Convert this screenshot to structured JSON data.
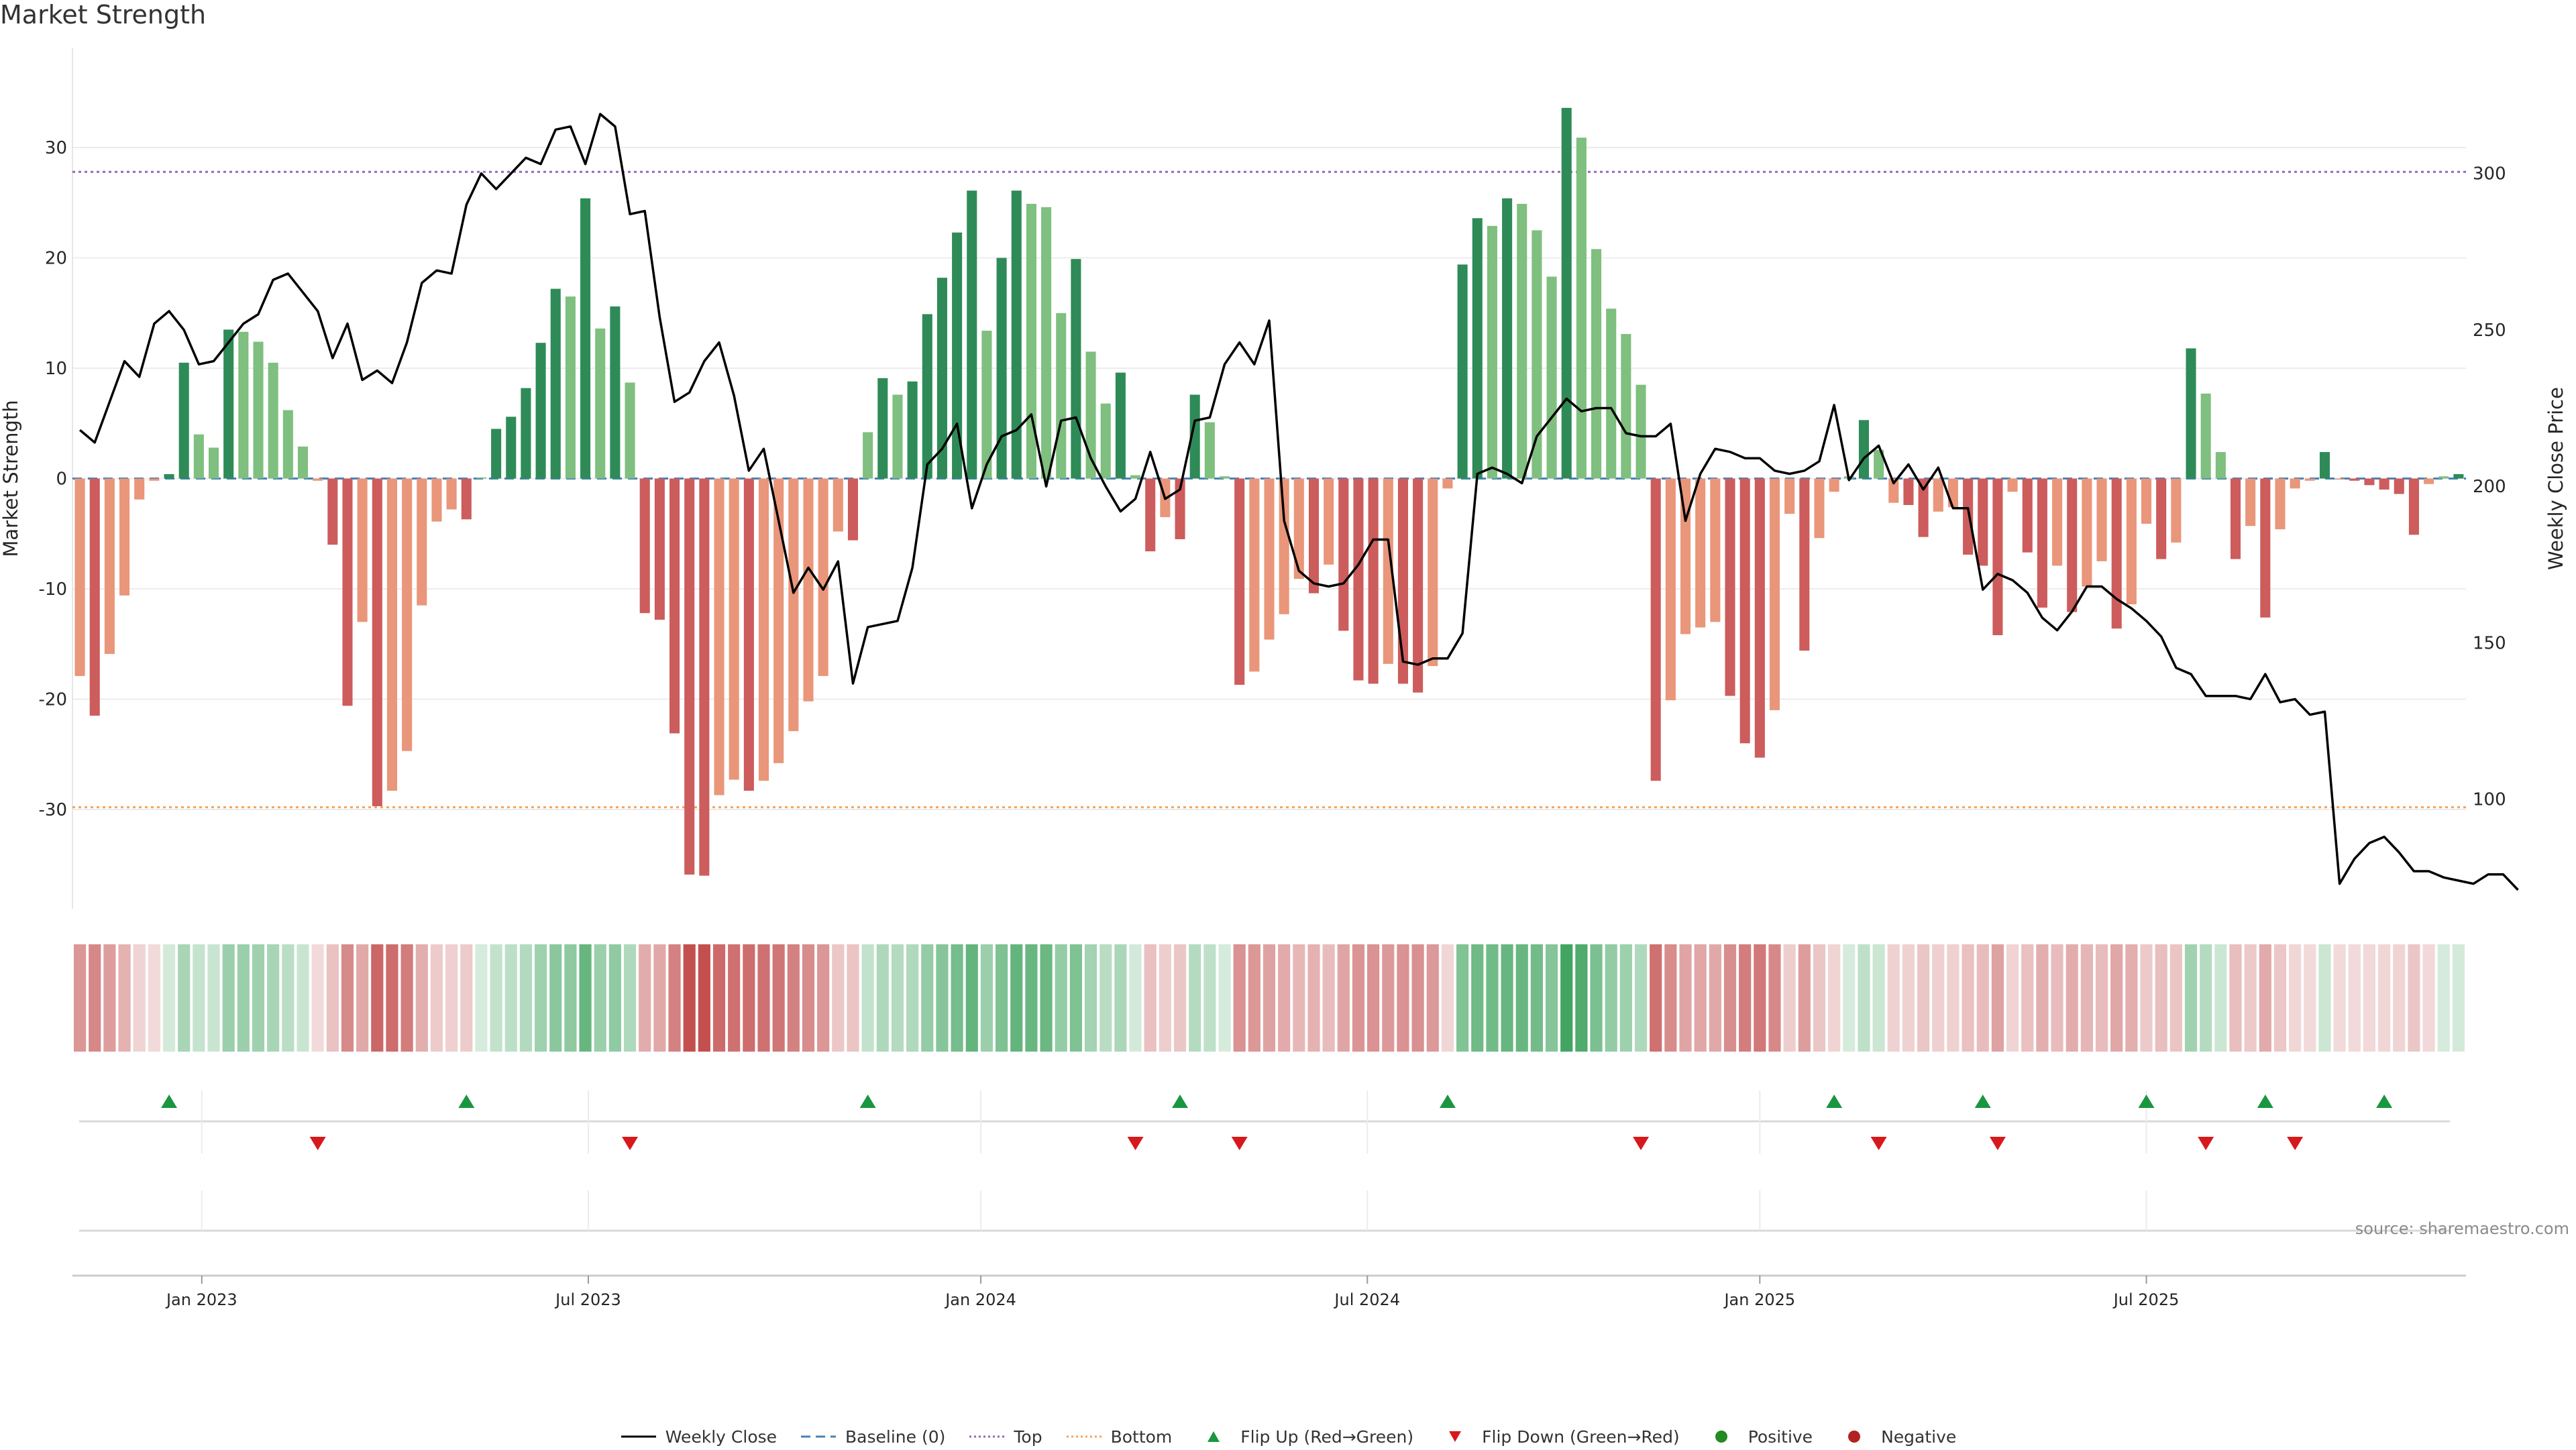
{
  "title": "Market Strength",
  "source": "source: sharemaestro.com",
  "colors": {
    "strong_pos": "#2e8b57",
    "weak_pos": "#7fbf7f",
    "strong_neg": "#cd5c5c",
    "weak_neg": "#e9967a",
    "line": "#000000",
    "baseline": "#4682b4",
    "top": "#9467bd",
    "bottom": "#f4a460",
    "flip_up": "#1a9641",
    "flip_down": "#d7191c"
  },
  "legend": [
    {
      "label": "Weekly Close",
      "symbol": "line-solid"
    },
    {
      "label": "Baseline (0)",
      "symbol": "line-dashed"
    },
    {
      "label": "Top",
      "symbol": "line-dotted-purple"
    },
    {
      "label": "Bottom",
      "symbol": "line-dotted-orange"
    },
    {
      "label": "Flip Up (Red→Green)",
      "symbol": "triangle-up"
    },
    {
      "label": "Flip Down (Green→Red)",
      "symbol": "triangle-down"
    },
    {
      "label": "Positive",
      "symbol": "dot-green"
    },
    {
      "label": "Negative",
      "symbol": "dot-red"
    }
  ],
  "chart_data": {
    "type": "bar",
    "ylabel": "Market Strength",
    "y2label": "Weekly Close Price",
    "ylim": [
      -39,
      39
    ],
    "y2lim": [
      65,
      340
    ],
    "yticks": [
      30,
      20,
      10,
      0,
      -10,
      -20,
      -30
    ],
    "y2ticks": [
      300,
      250,
      200,
      150,
      100
    ],
    "top_level": 27.8,
    "bottom_level": -29.8,
    "baseline": 0,
    "x_tick_labels": [
      "Jan 2023",
      "Jul 2023",
      "Jan 2024",
      "Jul 2024",
      "Jan 2025",
      "Jul 2025"
    ],
    "x_tick_weeks": [
      8.7,
      34.7,
      61.1,
      87.1,
      113.5,
      139.5
    ],
    "strength": [
      -17.9,
      -21.5,
      -15.9,
      -10.6,
      -1.9,
      -0.2,
      0.4,
      10.5,
      4.0,
      2.8,
      13.5,
      13.3,
      12.4,
      10.5,
      6.2,
      2.9,
      -0.2,
      -6.0,
      -20.6,
      -13.0,
      -29.7,
      -28.3,
      -24.7,
      -11.5,
      -3.9,
      -2.8,
      -3.7,
      0.1,
      4.5,
      5.6,
      8.2,
      12.3,
      17.2,
      16.5,
      25.4,
      13.6,
      15.6,
      8.7,
      -12.2,
      -12.8,
      -23.1,
      -35.9,
      -36.0,
      -28.7,
      -27.3,
      -28.3,
      -27.4,
      -25.8,
      -22.9,
      -20.2,
      -17.9,
      -4.8,
      -5.6,
      4.2,
      9.1,
      7.6,
      8.8,
      14.9,
      18.2,
      22.3,
      26.1,
      13.4,
      20.0,
      26.1,
      24.9,
      24.6,
      15.0,
      19.9,
      11.5,
      6.8,
      9.6,
      0.3,
      -6.6,
      -3.5,
      -5.5,
      7.6,
      5.1,
      0.2,
      -18.7,
      -17.5,
      -14.6,
      -12.3,
      -9.1,
      -10.4,
      -7.8,
      -13.8,
      -18.3,
      -18.6,
      -16.8,
      -18.6,
      -19.4,
      -17.0,
      -0.9,
      19.4,
      23.6,
      22.9,
      25.4,
      24.9,
      22.5,
      18.3,
      33.6,
      30.9,
      20.8,
      15.4,
      13.1,
      8.5,
      -27.4,
      -20.1,
      -14.1,
      -13.5,
      -13.0,
      -19.7,
      -24.0,
      -25.3,
      -21.0,
      -3.2,
      -15.6,
      -5.4,
      -1.2,
      0.2,
      5.3,
      2.6,
      -2.2,
      -2.4,
      -5.3,
      -3.0,
      -2.6,
      -6.9,
      -7.9,
      -14.2,
      -1.2,
      -6.7,
      -11.7,
      -7.9,
      -12.1,
      -9.8,
      -7.5,
      -13.6,
      -11.4,
      -4.1,
      -7.3,
      -5.8,
      11.8,
      7.7,
      2.4,
      -7.3,
      -4.3,
      -12.6,
      -4.6,
      -0.9,
      -0.2,
      2.4,
      -0.1,
      -0.2,
      -0.6,
      -1.0,
      -1.4,
      -5.1,
      -0.5,
      0.2,
      0.4
    ],
    "weekly_close": [
      218,
      214,
      227,
      240,
      235,
      252,
      256,
      250,
      239,
      240,
      246,
      252,
      255,
      266,
      268,
      262,
      256,
      241,
      252,
      234,
      237,
      233,
      246,
      265,
      269,
      268,
      290,
      300,
      295,
      300,
      305,
      303,
      314,
      315,
      303,
      319,
      315,
      287,
      288,
      254,
      227,
      230,
      240,
      246,
      229,
      205,
      212,
      189,
      166,
      174,
      167,
      176,
      137,
      155,
      156,
      157,
      174,
      207,
      212,
      220,
      193,
      207,
      216,
      218,
      223,
      200,
      221,
      222,
      209,
      200,
      192,
      196,
      211,
      196,
      199,
      221,
      222,
      239,
      246,
      239,
      253,
      189,
      173,
      169,
      168,
      169,
      175,
      183,
      183,
      144,
      143,
      145,
      145,
      153,
      204,
      206,
      204,
      201,
      216,
      222,
      228,
      224,
      225,
      225,
      217,
      216,
      216,
      220,
      189,
      204,
      212,
      211,
      209,
      209,
      205,
      204,
      205,
      208,
      226,
      202,
      209,
      213,
      201,
      207,
      199,
      206,
      193,
      193,
      167,
      172,
      170,
      166,
      158,
      154,
      160,
      168,
      168,
      164,
      161,
      157,
      152,
      142,
      140,
      133,
      133,
      133,
      132,
      140,
      131,
      132,
      127,
      128,
      73,
      81,
      86,
      88,
      83,
      77,
      77,
      75,
      74,
      73,
      76,
      76,
      71
    ],
    "flip_up_weeks": [
      6.5,
      26.5,
      53.5,
      74.5,
      92.5,
      118.5,
      128.5,
      139.5,
      147.5,
      155.5
    ],
    "flip_down_weeks": [
      16.5,
      37.5,
      71.5,
      78.5,
      105.5,
      121.5,
      129.5,
      143.5,
      149.5
    ]
  }
}
